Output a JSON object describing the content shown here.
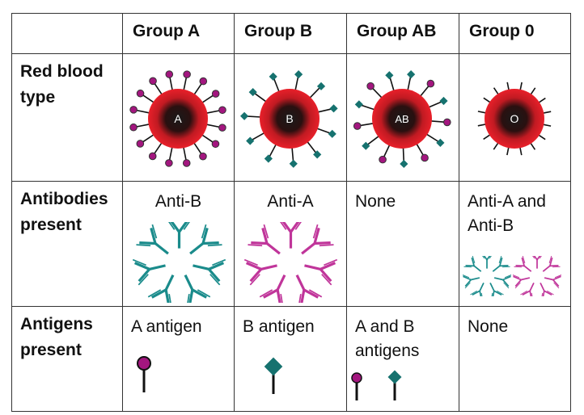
{
  "columns": [
    "",
    "Group A",
    "Group B",
    "Group AB",
    "Group 0"
  ],
  "rows": {
    "red_blood_type": {
      "label": "Red blood type",
      "cells": [
        "A",
        "B",
        "AB",
        "O"
      ]
    },
    "antibodies": {
      "label": "Antibodies present",
      "cells": [
        "Anti-B",
        "Anti-A",
        "None",
        "Anti-A and Anti-B"
      ]
    },
    "antigens": {
      "label": "Antigens present",
      "cells": [
        "A antigen",
        "B antigen",
        "A and B antigens",
        "None"
      ]
    }
  },
  "colors": {
    "cell_red": "#e8202a",
    "cell_core": "#1a1a1a",
    "antigen_a": "#a3167f",
    "antigen_b": "#16726f",
    "antibody_teal": "#1a8b8b",
    "antibody_magenta": "#c0359a"
  }
}
